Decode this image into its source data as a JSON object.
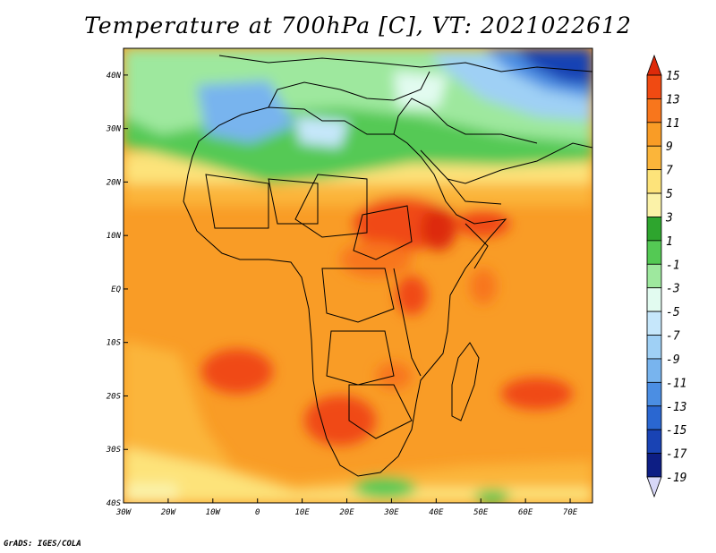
{
  "title": "Temperature at 700hPa [C], VT: 2021022612",
  "credit": "GrADS: IGES/COLA",
  "map": {
    "lon_range": [
      -30,
      75
    ],
    "lat_range": [
      -40,
      45
    ],
    "lat_ticks": [
      {
        "lat": 40,
        "label": "40N"
      },
      {
        "lat": 30,
        "label": "30N"
      },
      {
        "lat": 20,
        "label": "20N"
      },
      {
        "lat": 10,
        "label": "10N"
      },
      {
        "lat": 0,
        "label": "EQ"
      },
      {
        "lat": -10,
        "label": "10S"
      },
      {
        "lat": -20,
        "label": "20S"
      },
      {
        "lat": -30,
        "label": "30S"
      },
      {
        "lat": -40,
        "label": "40S"
      }
    ],
    "lon_ticks": [
      {
        "lon": -30,
        "label": "30W"
      },
      {
        "lon": -20,
        "label": "20W"
      },
      {
        "lon": -10,
        "label": "10W"
      },
      {
        "lon": 0,
        "label": "0"
      },
      {
        "lon": 10,
        "label": "10E"
      },
      {
        "lon": 20,
        "label": "20E"
      },
      {
        "lon": 30,
        "label": "30E"
      },
      {
        "lon": 40,
        "label": "40E"
      },
      {
        "lon": 50,
        "label": "50E"
      },
      {
        "lon": 60,
        "label": "60E"
      },
      {
        "lon": 70,
        "label": "70E"
      }
    ]
  },
  "colorbar": {
    "levels": [
      "15",
      "13",
      "11",
      "9",
      "7",
      "5",
      "3",
      "1",
      "-1",
      "-3",
      "-5",
      "-7",
      "-9",
      "-11",
      "-13",
      "-15",
      "-17",
      "-19"
    ],
    "colors_top_to_bottom": [
      "#dd2a0a",
      "#f04a12",
      "#f8761c",
      "#f99c26",
      "#fbb53a",
      "#fde37a",
      "#fbf2a8",
      "#2ea52e",
      "#54c954",
      "#9ee89e",
      "#e2fbf0",
      "#c6e7fb",
      "#9fd0f5",
      "#78b4ee",
      "#4b8ee3",
      "#2a67d1",
      "#1943b4",
      "#0d1e84",
      "#d8d8f8"
    ]
  }
}
